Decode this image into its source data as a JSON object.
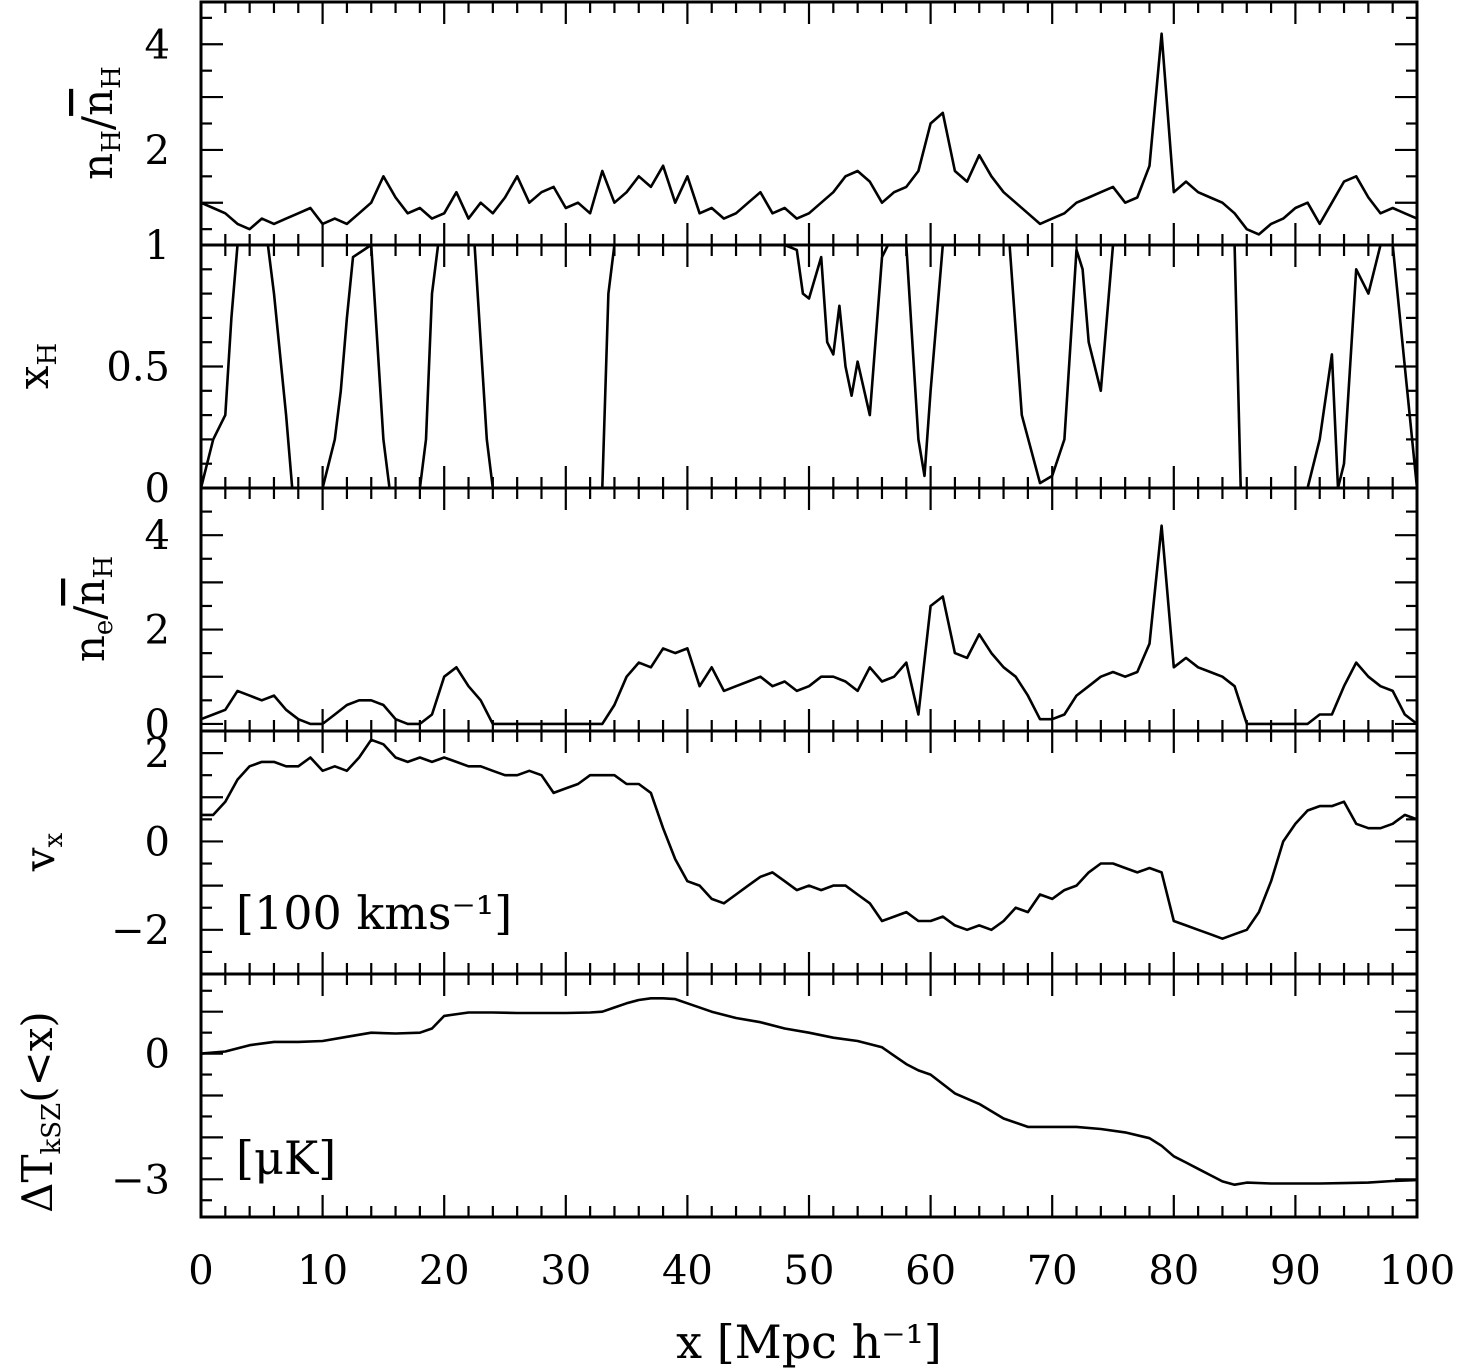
{
  "chart_data": {
    "type": "line",
    "title": "",
    "xlabel": "x [Mpc h⁻¹]",
    "xlim": [
      0,
      100
    ],
    "xticks": [
      "0",
      "10",
      "20",
      "30",
      "40",
      "50",
      "60",
      "70",
      "80",
      "90",
      "100"
    ],
    "panels": [
      {
        "id": "nH",
        "ylabel": "n_H / n̄_H",
        "ylim": [
          0.2,
          4.8
        ],
        "yticks": [
          "2",
          "4"
        ],
        "series": [
          {
            "name": "n_H/n̄_H",
            "x": [
              0,
              1,
              2,
              3,
              4,
              5,
              6,
              7,
              8,
              9,
              10,
              11,
              12,
              13,
              14,
              15,
              16,
              17,
              18,
              19,
              20,
              21,
              22,
              23,
              24,
              25,
              26,
              27,
              28,
              29,
              30,
              31,
              32,
              33,
              34,
              35,
              36,
              37,
              38,
              39,
              40,
              41,
              42,
              43,
              44,
              45,
              46,
              47,
              48,
              49,
              50,
              51,
              52,
              53,
              54,
              55,
              56,
              57,
              58,
              59,
              60,
              61,
              62,
              63,
              64,
              65,
              66,
              67,
              68,
              69,
              70,
              71,
              72,
              73,
              74,
              75,
              76,
              77,
              78,
              79,
              80,
              81,
              82,
              83,
              84,
              85,
              86,
              87,
              88,
              89,
              90,
              91,
              92,
              93,
              94,
              95,
              96,
              97,
              98,
              99,
              100
            ],
            "y": [
              1.0,
              0.9,
              0.8,
              0.6,
              0.5,
              0.7,
              0.6,
              0.7,
              0.8,
              0.9,
              0.6,
              0.7,
              0.6,
              0.8,
              1.0,
              1.5,
              1.1,
              0.8,
              0.9,
              0.7,
              0.8,
              1.2,
              0.7,
              1.0,
              0.8,
              1.1,
              1.5,
              1.0,
              1.2,
              1.3,
              0.9,
              1.0,
              0.8,
              1.6,
              1.0,
              1.2,
              1.5,
              1.3,
              1.7,
              1.0,
              1.5,
              0.8,
              0.9,
              0.7,
              0.8,
              1.0,
              1.2,
              0.8,
              0.9,
              0.7,
              0.8,
              1.0,
              1.2,
              1.5,
              1.6,
              1.4,
              1.0,
              1.2,
              1.3,
              1.6,
              2.5,
              2.7,
              1.6,
              1.4,
              1.9,
              1.5,
              1.2,
              1.0,
              0.8,
              0.6,
              0.7,
              0.8,
              1.0,
              1.1,
              1.2,
              1.3,
              1.0,
              1.1,
              1.7,
              4.2,
              1.2,
              1.4,
              1.2,
              1.1,
              1.0,
              0.8,
              0.5,
              0.4,
              0.6,
              0.7,
              0.9,
              1.0,
              0.6,
              1.0,
              1.4,
              1.5,
              1.1,
              0.8,
              0.9,
              0.8,
              0.7
            ]
          }
        ]
      },
      {
        "id": "xH",
        "ylabel": "x_H",
        "ylim": [
          0,
          1
        ],
        "yticks": [
          "0",
          "0.5",
          "1"
        ],
        "series": [
          {
            "name": "x_H",
            "x": [
              0,
              0.5,
              1,
              1.5,
              2,
              2.5,
              3,
              3.5,
              5.5,
              6,
              7,
              7.5,
              10,
              11,
              11.5,
              12,
              12.5,
              14,
              15,
              15.5,
              18,
              18.5,
              19,
              19.5,
              21.5,
              22.5,
              23.5,
              24,
              33,
              33.5,
              34,
              48,
              49,
              49.5,
              50,
              51,
              51.5,
              52,
              52.5,
              53,
              53.5,
              54,
              55,
              56,
              56.5,
              58,
              59,
              59.5,
              60,
              61,
              62,
              66.5,
              67.5,
              69,
              70,
              71,
              72,
              72.5,
              73,
              74,
              75,
              75.5,
              85,
              85.5,
              91,
              92,
              93,
              93.5,
              94,
              95,
              96,
              97,
              98,
              99,
              100
            ],
            "y": [
              0,
              0.1,
              0.2,
              0.25,
              0.3,
              0.7,
              1,
              1,
              1,
              0.8,
              0.3,
              0,
              0,
              0.2,
              0.4,
              0.7,
              0.95,
              1,
              0.2,
              0,
              0,
              0.2,
              0.8,
              1,
              1,
              1,
              0.2,
              0,
              0,
              0.8,
              1,
              1,
              0.98,
              0.8,
              0.78,
              0.95,
              0.6,
              0.55,
              0.75,
              0.5,
              0.38,
              0.52,
              0.3,
              0.95,
              1,
              1,
              0.2,
              0.05,
              0.4,
              1,
              1,
              1,
              0.3,
              0.02,
              0.05,
              0.2,
              0.98,
              0.9,
              0.6,
              0.4,
              1,
              1,
              1,
              0,
              0,
              0.2,
              0.55,
              0,
              0.1,
              0.9,
              0.8,
              1,
              1,
              0.5,
              0
            ]
          }
        ]
      },
      {
        "id": "ne",
        "ylabel": "n_e / n̄_H",
        "ylim": [
          -0.15,
          5.0
        ],
        "yticks": [
          "0",
          "2",
          "4"
        ],
        "series": [
          {
            "name": "n_e/n̄_H",
            "x": [
              0,
              1,
              2,
              3,
              4,
              5,
              6,
              7,
              8,
              9,
              10,
              11,
              12,
              13,
              14,
              15,
              16,
              17,
              18,
              19,
              20,
              21,
              22,
              23,
              24,
              25,
              26,
              27,
              28,
              29,
              30,
              31,
              32,
              33,
              34,
              35,
              36,
              37,
              38,
              39,
              40,
              41,
              42,
              43,
              44,
              45,
              46,
              47,
              48,
              49,
              50,
              51,
              52,
              53,
              54,
              55,
              56,
              57,
              58,
              59,
              60,
              61,
              62,
              63,
              64,
              65,
              66,
              67,
              68,
              69,
              70,
              71,
              72,
              73,
              74,
              75,
              76,
              77,
              78,
              79,
              80,
              81,
              82,
              83,
              84,
              85,
              86,
              87,
              88,
              89,
              90,
              91,
              92,
              93,
              94,
              95,
              96,
              97,
              98,
              99,
              100
            ],
            "y": [
              0.1,
              0.2,
              0.3,
              0.7,
              0.6,
              0.5,
              0.6,
              0.3,
              0.1,
              0,
              0,
              0.2,
              0.4,
              0.5,
              0.5,
              0.4,
              0.1,
              0,
              0,
              0.2,
              1.0,
              1.2,
              0.8,
              0.5,
              0,
              0,
              0,
              0,
              0,
              0,
              0,
              0,
              0,
              0,
              0.4,
              1.0,
              1.3,
              1.2,
              1.6,
              1.5,
              1.6,
              0.8,
              1.2,
              0.7,
              0.8,
              0.9,
              1.0,
              0.8,
              0.9,
              0.7,
              0.8,
              1.0,
              1.0,
              0.9,
              0.7,
              1.2,
              0.9,
              1.0,
              1.3,
              0.2,
              2.5,
              2.7,
              1.5,
              1.4,
              1.9,
              1.5,
              1.2,
              1.0,
              0.6,
              0.1,
              0.1,
              0.2,
              0.6,
              0.8,
              1.0,
              1.1,
              1.0,
              1.1,
              1.7,
              4.2,
              1.2,
              1.4,
              1.2,
              1.1,
              1.0,
              0.8,
              0,
              0,
              0,
              0,
              0,
              0,
              0.2,
              0.2,
              0.8,
              1.3,
              1.0,
              0.8,
              0.7,
              0.2,
              0
            ]
          }
        ]
      },
      {
        "id": "vx",
        "ylabel": "v_x",
        "unit": "[100 kms⁻¹]",
        "ylim": [
          -3.0,
          2.5
        ],
        "yticks": [
          "−2",
          "0",
          "2"
        ],
        "series": [
          {
            "name": "v_x",
            "x": [
              0,
              1,
              2,
              3,
              4,
              5,
              6,
              7,
              8,
              9,
              10,
              11,
              12,
              13,
              14,
              15,
              16,
              17,
              18,
              19,
              20,
              21,
              22,
              23,
              24,
              25,
              26,
              27,
              28,
              29,
              30,
              31,
              32,
              33,
              34,
              35,
              36,
              37,
              38,
              39,
              40,
              41,
              42,
              43,
              44,
              45,
              46,
              47,
              48,
              49,
              50,
              51,
              52,
              53,
              54,
              55,
              56,
              57,
              58,
              59,
              60,
              61,
              62,
              63,
              64,
              65,
              66,
              67,
              68,
              69,
              70,
              71,
              72,
              73,
              74,
              75,
              76,
              77,
              78,
              79,
              80,
              81,
              82,
              83,
              84,
              85,
              86,
              87,
              88,
              89,
              90,
              91,
              92,
              93,
              94,
              95,
              96,
              97,
              98,
              99,
              100
            ],
            "y": [
              0.6,
              0.6,
              0.9,
              1.4,
              1.7,
              1.8,
              1.8,
              1.7,
              1.7,
              1.9,
              1.6,
              1.7,
              1.6,
              1.9,
              2.3,
              2.2,
              1.9,
              1.8,
              1.9,
              1.8,
              1.9,
              1.8,
              1.7,
              1.7,
              1.6,
              1.5,
              1.5,
              1.6,
              1.5,
              1.1,
              1.2,
              1.3,
              1.5,
              1.5,
              1.5,
              1.3,
              1.3,
              1.1,
              0.3,
              -0.4,
              -0.9,
              -1.0,
              -1.3,
              -1.4,
              -1.2,
              -1.0,
              -0.8,
              -0.7,
              -0.9,
              -1.1,
              -1.0,
              -1.1,
              -1.0,
              -1.0,
              -1.2,
              -1.4,
              -1.8,
              -1.7,
              -1.6,
              -1.8,
              -1.8,
              -1.7,
              -1.9,
              -2.0,
              -1.9,
              -2.0,
              -1.8,
              -1.5,
              -1.6,
              -1.2,
              -1.3,
              -1.1,
              -1.0,
              -0.7,
              -0.5,
              -0.5,
              -0.6,
              -0.7,
              -0.6,
              -0.7,
              -1.8,
              -1.9,
              -2.0,
              -2.1,
              -2.2,
              -2.1,
              -2.0,
              -1.6,
              -0.9,
              0.0,
              0.4,
              0.7,
              0.8,
              0.8,
              0.9,
              0.4,
              0.3,
              0.3,
              0.4,
              0.6,
              0.5
            ]
          }
        ]
      },
      {
        "id": "dT",
        "ylabel": "ΔT_kSZ(<x)",
        "unit": "[μK]",
        "ylim": [
          -3.9,
          1.9
        ],
        "yticks": [
          "−3",
          "0"
        ],
        "series": [
          {
            "name": "ΔT_kSZ",
            "x": [
              0,
              2,
              4,
              6,
              8,
              10,
              12,
              14,
              16,
              18,
              19,
              20,
              22,
              24,
              26,
              28,
              30,
              32,
              33,
              34,
              35,
              36,
              37,
              38,
              39,
              40,
              42,
              44,
              46,
              48,
              50,
              52,
              54,
              56,
              57,
              58,
              59,
              60,
              62,
              64,
              66,
              68,
              70,
              72,
              74,
              76,
              78,
              79,
              80,
              81,
              82,
              83,
              84,
              85,
              86,
              88,
              90,
              92,
              94,
              96,
              98,
              100
            ],
            "y": [
              0,
              0.05,
              0.2,
              0.28,
              0.28,
              0.3,
              0.4,
              0.5,
              0.48,
              0.5,
              0.6,
              0.9,
              0.98,
              0.98,
              0.97,
              0.97,
              0.97,
              0.98,
              1.0,
              1.1,
              1.2,
              1.28,
              1.32,
              1.32,
              1.3,
              1.2,
              1.0,
              0.85,
              0.75,
              0.6,
              0.5,
              0.38,
              0.3,
              0.15,
              -0.05,
              -0.25,
              -0.4,
              -0.5,
              -0.95,
              -1.2,
              -1.55,
              -1.75,
              -1.75,
              -1.75,
              -1.8,
              -1.88,
              -2.02,
              -2.2,
              -2.45,
              -2.6,
              -2.75,
              -2.9,
              -3.05,
              -3.13,
              -3.08,
              -3.1,
              -3.1,
              -3.1,
              -3.09,
              -3.08,
              -3.04,
              -3.02
            ]
          }
        ]
      }
    ]
  }
}
